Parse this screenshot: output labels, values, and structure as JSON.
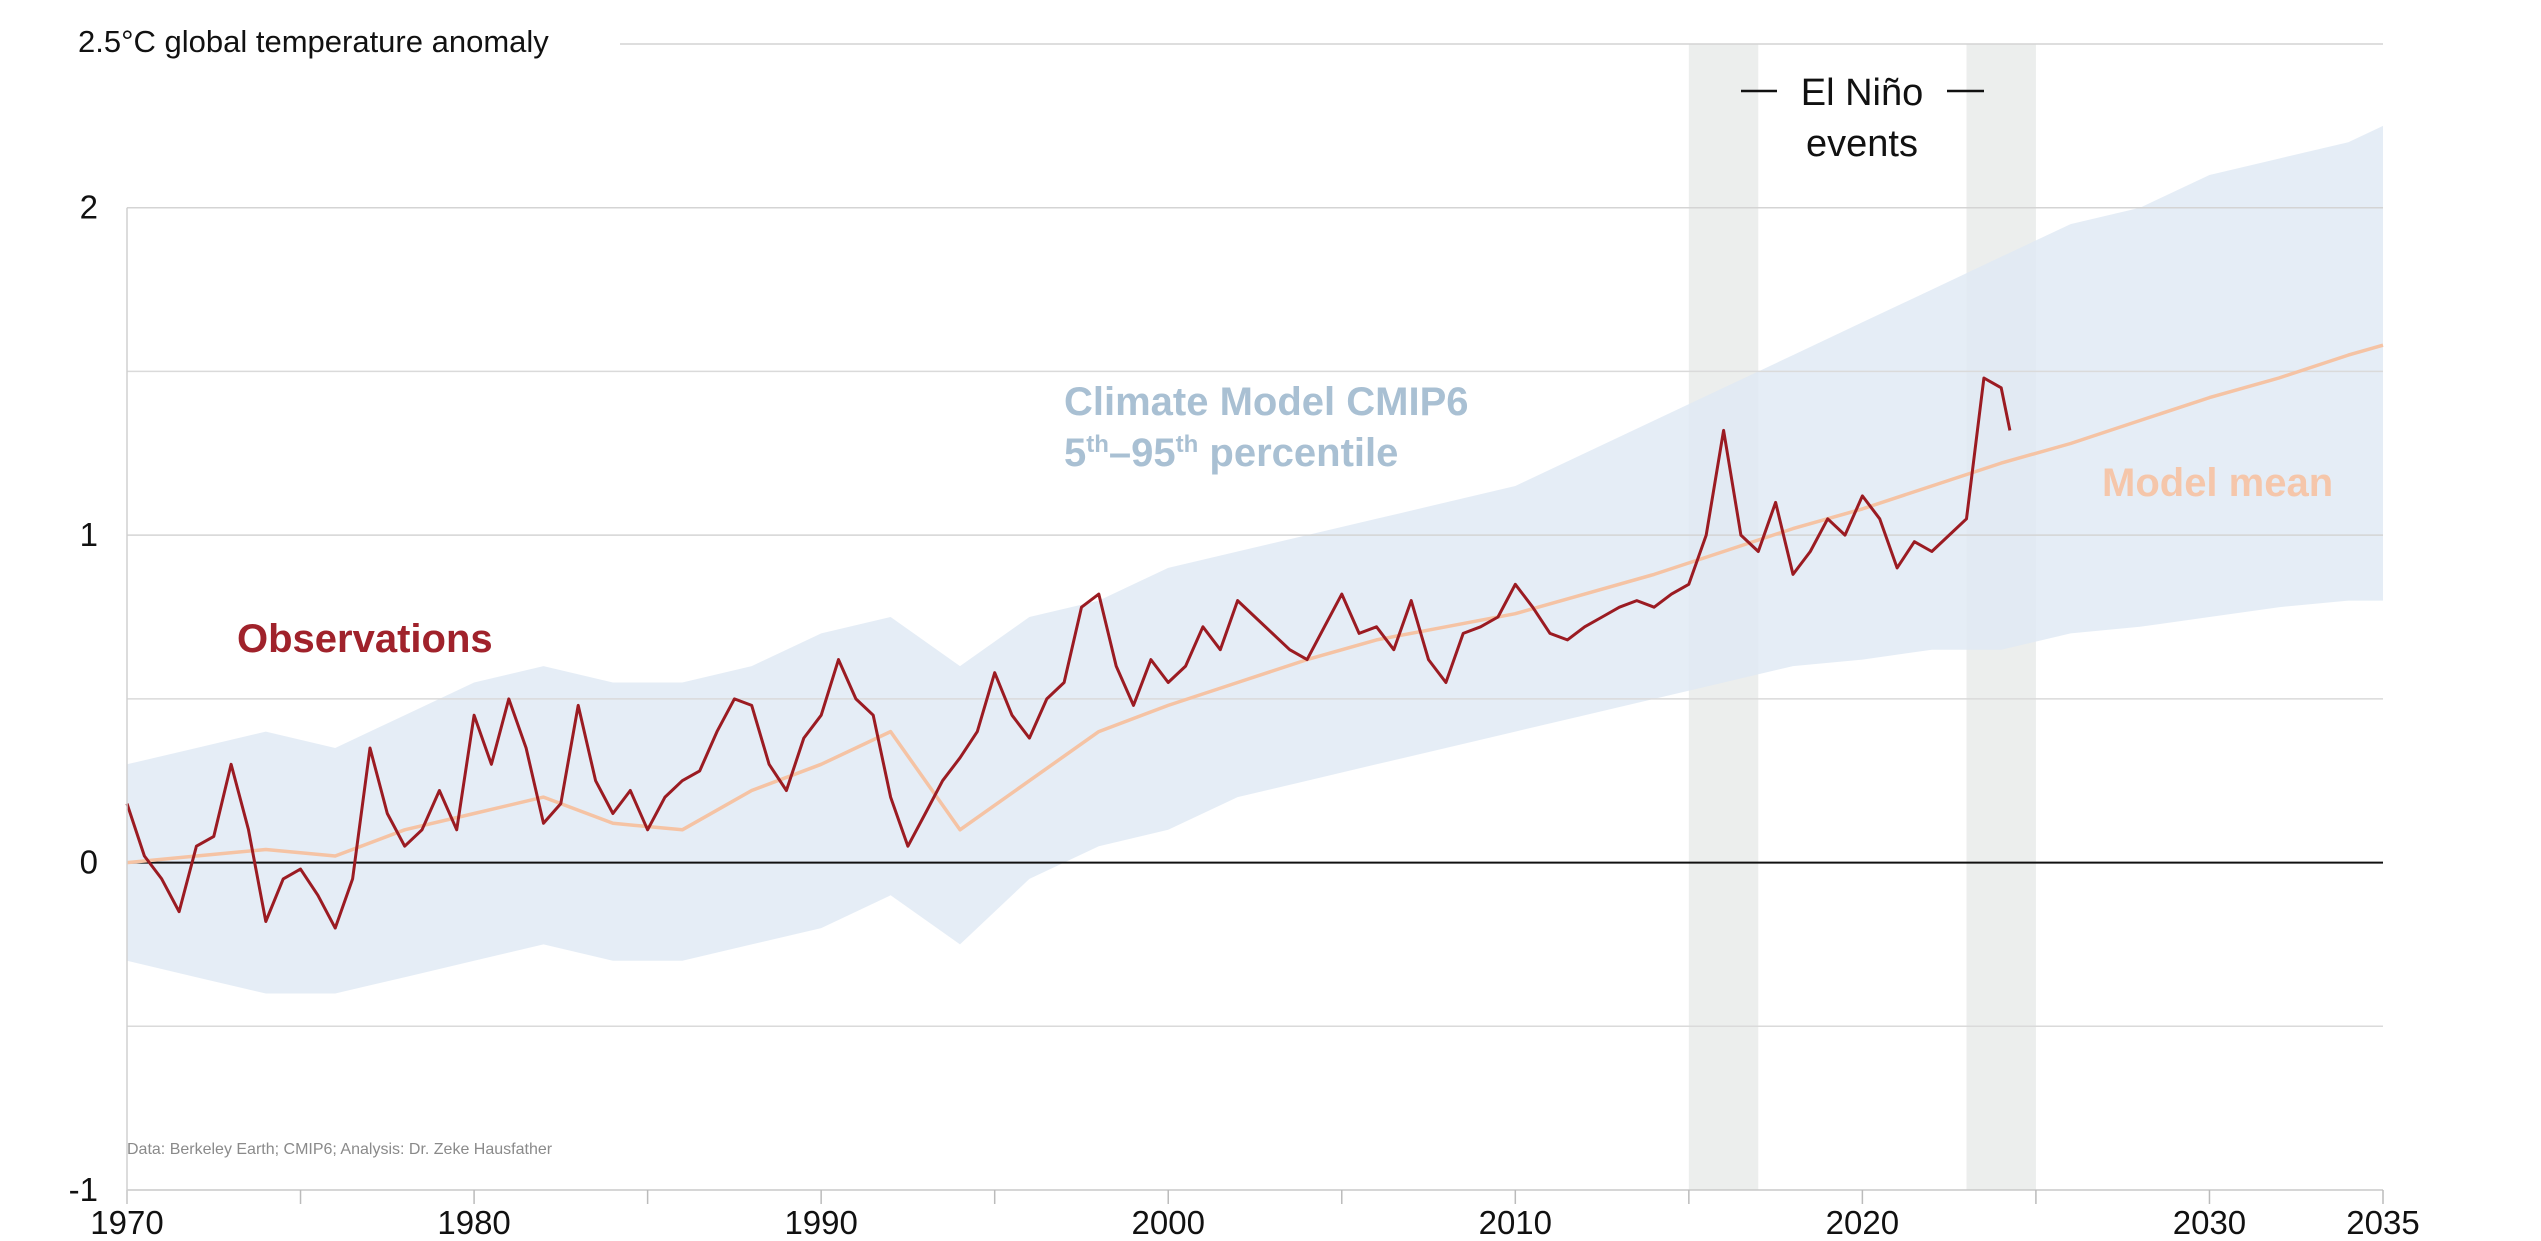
{
  "chart_data": {
    "type": "line",
    "title": "global temperature anomaly",
    "y_unit_label": "2.5°C global temperature anomaly",
    "xlim": [
      1970,
      2035
    ],
    "ylim": [
      -1,
      2.5
    ],
    "x_ticks": [
      {
        "value": 1970,
        "label": "1970"
      },
      {
        "value": 1980,
        "label": "1980"
      },
      {
        "value": 1990,
        "label": "1990"
      },
      {
        "value": 2000,
        "label": "2000"
      },
      {
        "value": 2010,
        "label": "2010"
      },
      {
        "value": 2020,
        "label": "2020"
      },
      {
        "value": 2030,
        "label": "2030"
      },
      {
        "value": 2035,
        "label": "2035"
      }
    ],
    "y_ticks": [
      {
        "value": -1,
        "label": "-1"
      },
      {
        "value": 0,
        "label": "0"
      },
      {
        "value": 1,
        "label": "1"
      },
      {
        "value": 2,
        "label": "2"
      }
    ],
    "y_minor_gridlines": [
      -0.5,
      0.5,
      1.5
    ],
    "highlight_bands": [
      {
        "start": 2015,
        "end": 2017
      },
      {
        "start": 2023,
        "end": 2025
      }
    ],
    "annotations": {
      "el_nino_line1": "El Niño",
      "el_nino_line2": "events",
      "model_range_line1": "Climate Model CMIP6",
      "model_range_base1": "5",
      "model_range_sup1": "th",
      "model_range_dash": "–",
      "model_range_base2": "95",
      "model_range_sup2": "th",
      "model_range_tail": " percentile",
      "observations": "Observations",
      "model_mean": "Model mean",
      "source": "Data: Berkeley Earth; CMIP6; Analysis: Dr. Zeke Hausfather"
    },
    "series": [
      {
        "name": "Observations",
        "color": "#9b1b22",
        "x": [
          1970.0,
          1970.5,
          1971.0,
          1971.5,
          1972.0,
          1972.5,
          1973.0,
          1973.5,
          1974.0,
          1974.5,
          1975.0,
          1975.5,
          1976.0,
          1976.5,
          1977.0,
          1977.5,
          1978.0,
          1978.5,
          1979.0,
          1979.5,
          1980.0,
          1980.5,
          1981.0,
          1981.5,
          1982.0,
          1982.5,
          1983.0,
          1983.5,
          1984.0,
          1984.5,
          1985.0,
          1985.5,
          1986.0,
          1986.5,
          1987.0,
          1987.5,
          1988.0,
          1988.5,
          1989.0,
          1989.5,
          1990.0,
          1990.5,
          1991.0,
          1991.5,
          1992.0,
          1992.5,
          1993.0,
          1993.5,
          1994.0,
          1994.5,
          1995.0,
          1995.5,
          1996.0,
          1996.5,
          1997.0,
          1997.5,
          1998.0,
          1998.5,
          1999.0,
          1999.5,
          2000.0,
          2000.5,
          2001.0,
          2001.5,
          2002.0,
          2002.5,
          2003.0,
          2003.5,
          2004.0,
          2004.5,
          2005.0,
          2005.5,
          2006.0,
          2006.5,
          2007.0,
          2007.5,
          2008.0,
          2008.5,
          2009.0,
          2009.5,
          2010.0,
          2010.5,
          2011.0,
          2011.5,
          2012.0,
          2012.5,
          2013.0,
          2013.5,
          2014.0,
          2014.5,
          2015.0,
          2015.5,
          2016.0,
          2016.5,
          2017.0,
          2017.5,
          2018.0,
          2018.5,
          2019.0,
          2019.5,
          2020.0,
          2020.5,
          2021.0,
          2021.5,
          2022.0,
          2022.5,
          2023.0,
          2023.5,
          2024.0,
          2024.25
        ],
        "values": [
          0.18,
          0.02,
          -0.05,
          -0.15,
          0.05,
          0.08,
          0.3,
          0.1,
          -0.18,
          -0.05,
          -0.02,
          -0.1,
          -0.2,
          -0.05,
          0.35,
          0.15,
          0.05,
          0.1,
          0.22,
          0.1,
          0.45,
          0.3,
          0.5,
          0.35,
          0.12,
          0.18,
          0.48,
          0.25,
          0.15,
          0.22,
          0.1,
          0.2,
          0.25,
          0.28,
          0.4,
          0.5,
          0.48,
          0.3,
          0.22,
          0.38,
          0.45,
          0.62,
          0.5,
          0.45,
          0.2,
          0.05,
          0.15,
          0.25,
          0.32,
          0.4,
          0.58,
          0.45,
          0.38,
          0.5,
          0.55,
          0.78,
          0.82,
          0.6,
          0.48,
          0.62,
          0.55,
          0.6,
          0.72,
          0.65,
          0.8,
          0.75,
          0.7,
          0.65,
          0.62,
          0.72,
          0.82,
          0.7,
          0.72,
          0.65,
          0.8,
          0.62,
          0.55,
          0.7,
          0.72,
          0.75,
          0.85,
          0.78,
          0.7,
          0.68,
          0.72,
          0.75,
          0.78,
          0.8,
          0.78,
          0.82,
          0.85,
          1.0,
          1.32,
          1.0,
          0.95,
          1.1,
          0.88,
          0.95,
          1.05,
          1.0,
          1.12,
          1.05,
          0.9,
          0.98,
          0.95,
          1.0,
          1.05,
          1.48,
          1.45,
          1.32
        ]
      },
      {
        "name": "Model mean",
        "color": "#f5c3a4",
        "x": [
          1970,
          1972,
          1974,
          1976,
          1978,
          1980,
          1982,
          1984,
          1986,
          1988,
          1990,
          1992,
          1994,
          1996,
          1998,
          2000,
          2002,
          2004,
          2006,
          2008,
          2010,
          2012,
          2014,
          2016,
          2018,
          2020,
          2022,
          2024,
          2026,
          2028,
          2030,
          2032,
          2034,
          2035
        ],
        "values": [
          0.0,
          0.02,
          0.04,
          0.02,
          0.1,
          0.15,
          0.2,
          0.12,
          0.1,
          0.22,
          0.3,
          0.4,
          0.1,
          0.25,
          0.4,
          0.48,
          0.55,
          0.62,
          0.68,
          0.72,
          0.76,
          0.82,
          0.88,
          0.95,
          1.02,
          1.08,
          1.15,
          1.22,
          1.28,
          1.35,
          1.42,
          1.48,
          1.55,
          1.58
        ]
      }
    ],
    "band": {
      "name": "Climate Model CMIP6 5th–95th percentile",
      "color": "#dfe9f4",
      "x": [
        1970,
        1972,
        1974,
        1976,
        1978,
        1980,
        1982,
        1984,
        1986,
        1988,
        1990,
        1992,
        1994,
        1996,
        1998,
        2000,
        2002,
        2004,
        2006,
        2008,
        2010,
        2012,
        2014,
        2016,
        2018,
        2020,
        2022,
        2024,
        2026,
        2028,
        2030,
        2032,
        2034,
        2035
      ],
      "lower": [
        -0.3,
        -0.35,
        -0.4,
        -0.4,
        -0.35,
        -0.3,
        -0.25,
        -0.3,
        -0.3,
        -0.25,
        -0.2,
        -0.1,
        -0.25,
        -0.05,
        0.05,
        0.1,
        0.2,
        0.25,
        0.3,
        0.35,
        0.4,
        0.45,
        0.5,
        0.55,
        0.6,
        0.62,
        0.65,
        0.65,
        0.7,
        0.72,
        0.75,
        0.78,
        0.8,
        0.8
      ],
      "upper": [
        0.3,
        0.35,
        0.4,
        0.35,
        0.45,
        0.55,
        0.6,
        0.55,
        0.55,
        0.6,
        0.7,
        0.75,
        0.6,
        0.75,
        0.8,
        0.9,
        0.95,
        1.0,
        1.05,
        1.1,
        1.15,
        1.25,
        1.35,
        1.45,
        1.55,
        1.65,
        1.75,
        1.85,
        1.95,
        2.0,
        2.1,
        2.15,
        2.2,
        2.25
      ]
    }
  }
}
